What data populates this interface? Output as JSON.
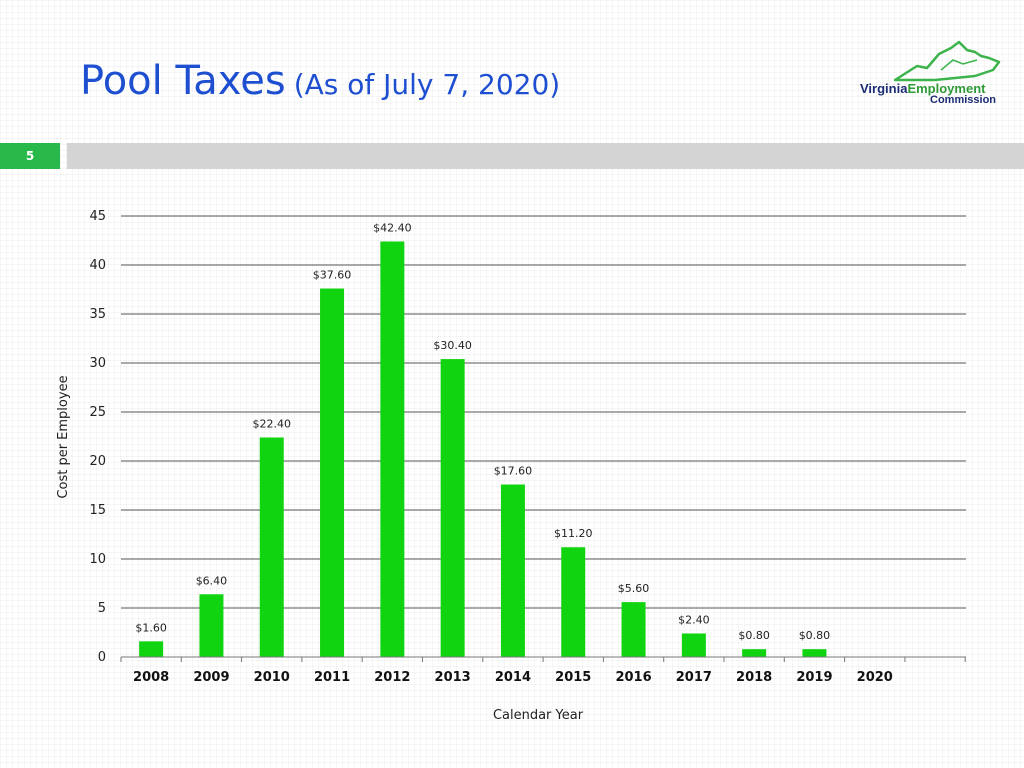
{
  "title": {
    "main": "Pool Taxes",
    "sub": "(As of  July 7, 2020)"
  },
  "logo": {
    "line1_a": "Virginia",
    "line1_b": "Employment",
    "line2": "Commission"
  },
  "slide_number": "5",
  "colors": {
    "bar": "#11d411",
    "title": "#1f4fd1",
    "slide_badge": "#29b84a"
  },
  "chart_data": {
    "type": "bar",
    "title": "",
    "xlabel": "Calendar Year",
    "ylabel": "Cost per Employee",
    "ylim": [
      0,
      45
    ],
    "yticks": [
      0,
      5,
      10,
      15,
      20,
      25,
      30,
      35,
      40,
      45
    ],
    "grid": true,
    "categories": [
      "2008",
      "2009",
      "2010",
      "2011",
      "2012",
      "2013",
      "2014",
      "2015",
      "2016",
      "2017",
      "2018",
      "2019",
      "2020"
    ],
    "values": [
      1.6,
      6.4,
      22.4,
      37.6,
      42.4,
      30.4,
      17.6,
      11.2,
      5.6,
      2.4,
      0.8,
      0.8,
      null
    ],
    "data_labels": [
      "$1.60",
      "$6.40",
      "$22.40",
      "$37.60",
      "$42.40",
      "$30.40",
      "$17.60",
      "$11.20",
      "$5.60",
      "$2.40",
      "$0.80",
      "$0.80",
      ""
    ]
  }
}
